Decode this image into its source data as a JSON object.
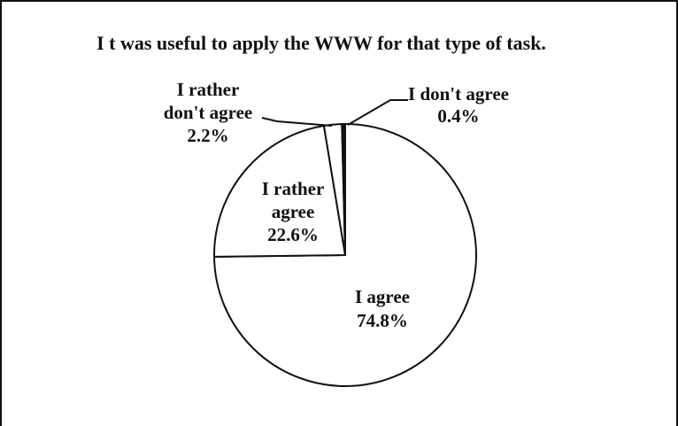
{
  "chart_data": {
    "type": "pie",
    "title": "I t was useful to apply the WWW for that type of task.",
    "slices": [
      {
        "name": "I agree",
        "value": 74.8,
        "label_lines": [
          "I agree",
          "74.8%"
        ]
      },
      {
        "name": "I rather agree",
        "value": 22.6,
        "label_lines": [
          "I rather",
          "agree",
          "22.6%"
        ]
      },
      {
        "name": "I rather don't agree",
        "value": 2.2,
        "label_lines": [
          "I rather",
          "don't agree",
          "2.2%"
        ]
      },
      {
        "name": "I don't agree",
        "value": 0.4,
        "label_lines": [
          "I don't agree",
          "0.4%"
        ]
      }
    ],
    "fill_color": "#ffffff",
    "stroke_color": "#111111"
  }
}
